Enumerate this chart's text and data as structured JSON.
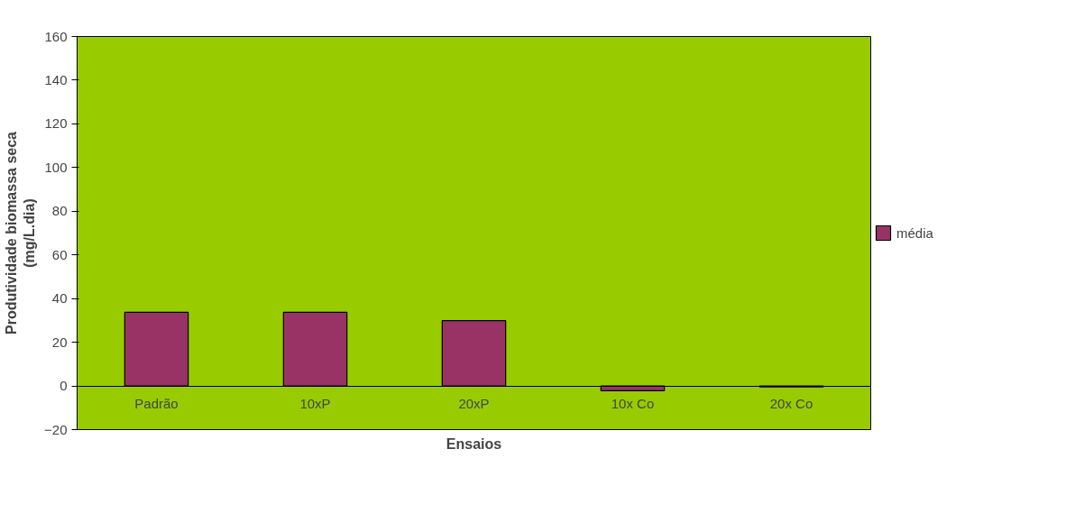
{
  "chart_data": {
    "type": "bar",
    "xlabel": "Ensaios",
    "ylabel": "Produtividade biomassa seca\n(mg/L.dia)",
    "categories": [
      "Padrão",
      "10xP",
      "20xP",
      "10x Co",
      "20x Co"
    ],
    "series": [
      {
        "name": "média",
        "color": "#993366",
        "values": [
          33.7,
          33.7,
          29.9,
          -2.2,
          -0.5
        ]
      }
    ],
    "ylim": [
      -20,
      160
    ],
    "yticks": [
      -20,
      0,
      20,
      40,
      60,
      80,
      100,
      120,
      140,
      160
    ],
    "grid": false,
    "legend": "right"
  }
}
